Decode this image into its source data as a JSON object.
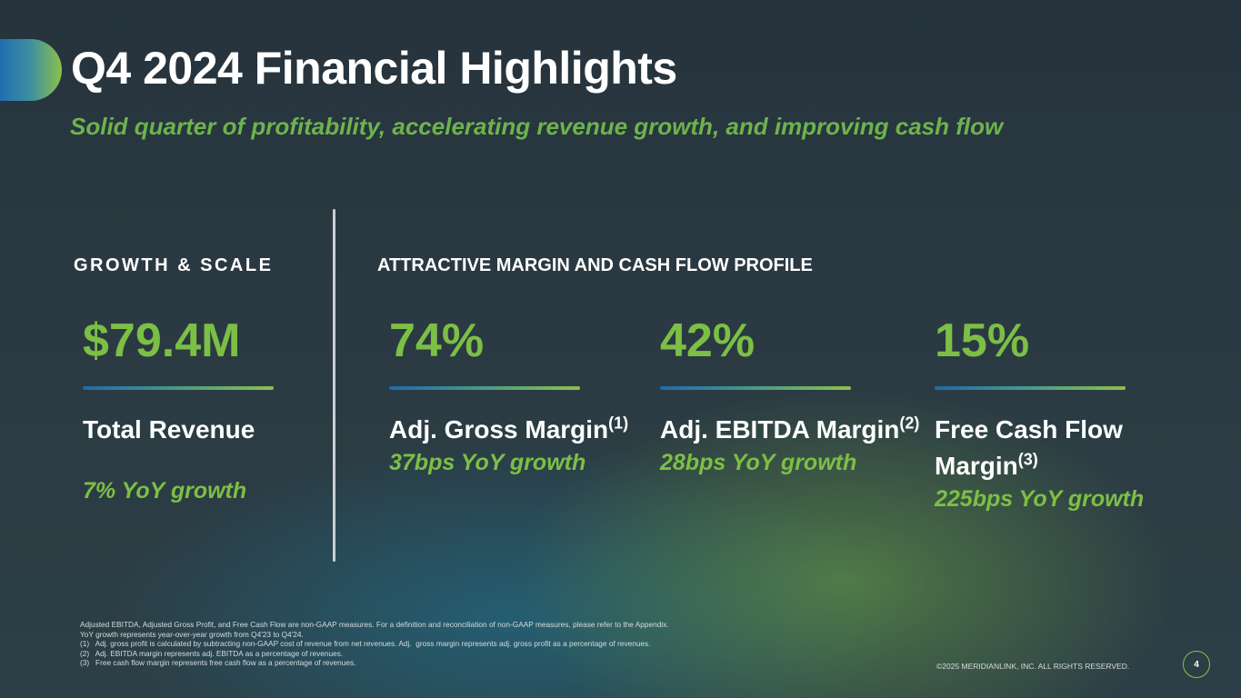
{
  "header": {
    "title": "Q4 2024 Financial Highlights",
    "subtitle": "Solid quarter of profitability, accelerating revenue growth, and improving cash flow"
  },
  "sections": {
    "growth_label": "GROWTH & SCALE",
    "margin_label": "ATTRACTIVE MARGIN AND CASH FLOW PROFILE"
  },
  "metrics": [
    {
      "value": "$79.4M",
      "label": "Total Revenue",
      "note": "",
      "growth": "7% YoY growth"
    },
    {
      "value": "74%",
      "label": "Adj. Gross Margin",
      "note": "(1)",
      "growth": "37bps YoY growth"
    },
    {
      "value": "42%",
      "label": "Adj. EBITDA Margin",
      "note": "(2)",
      "growth": "28bps YoY growth"
    },
    {
      "value": "15%",
      "label": "Free Cash Flow Margin",
      "note": "(3)",
      "growth": "225bps YoY growth"
    }
  ],
  "footnotes": [
    "Adjusted EBITDA, Adjusted Gross Profit, and Free Cash Flow are non-GAAP measures. For a definition and reconciliation of non-GAAP measures, please refer to the Appendix.",
    "YoY growth represents year-over-year growth from Q4'23 to Q4'24.",
    "(1)   Adj. gross profit is calculated by subtracting non-GAAP cost of revenue from net revenues. Adj.  gross margin represents adj. gross profit as a percentage of revenues.",
    "(2)   Adj. EBITDA margin represents adj. EBITDA as a percentage of revenues.",
    "(3)   Free cash flow margin represents free cash flow as a percentage of revenues."
  ],
  "footer": {
    "copyright": "©2025 MERIDIANLINK, INC. ALL RIGHTS RESERVED.",
    "page_number": "4"
  },
  "colors": {
    "accent_green": "#7cbf45",
    "accent_blue": "#1e6aa8",
    "background": "#2b3a42"
  }
}
